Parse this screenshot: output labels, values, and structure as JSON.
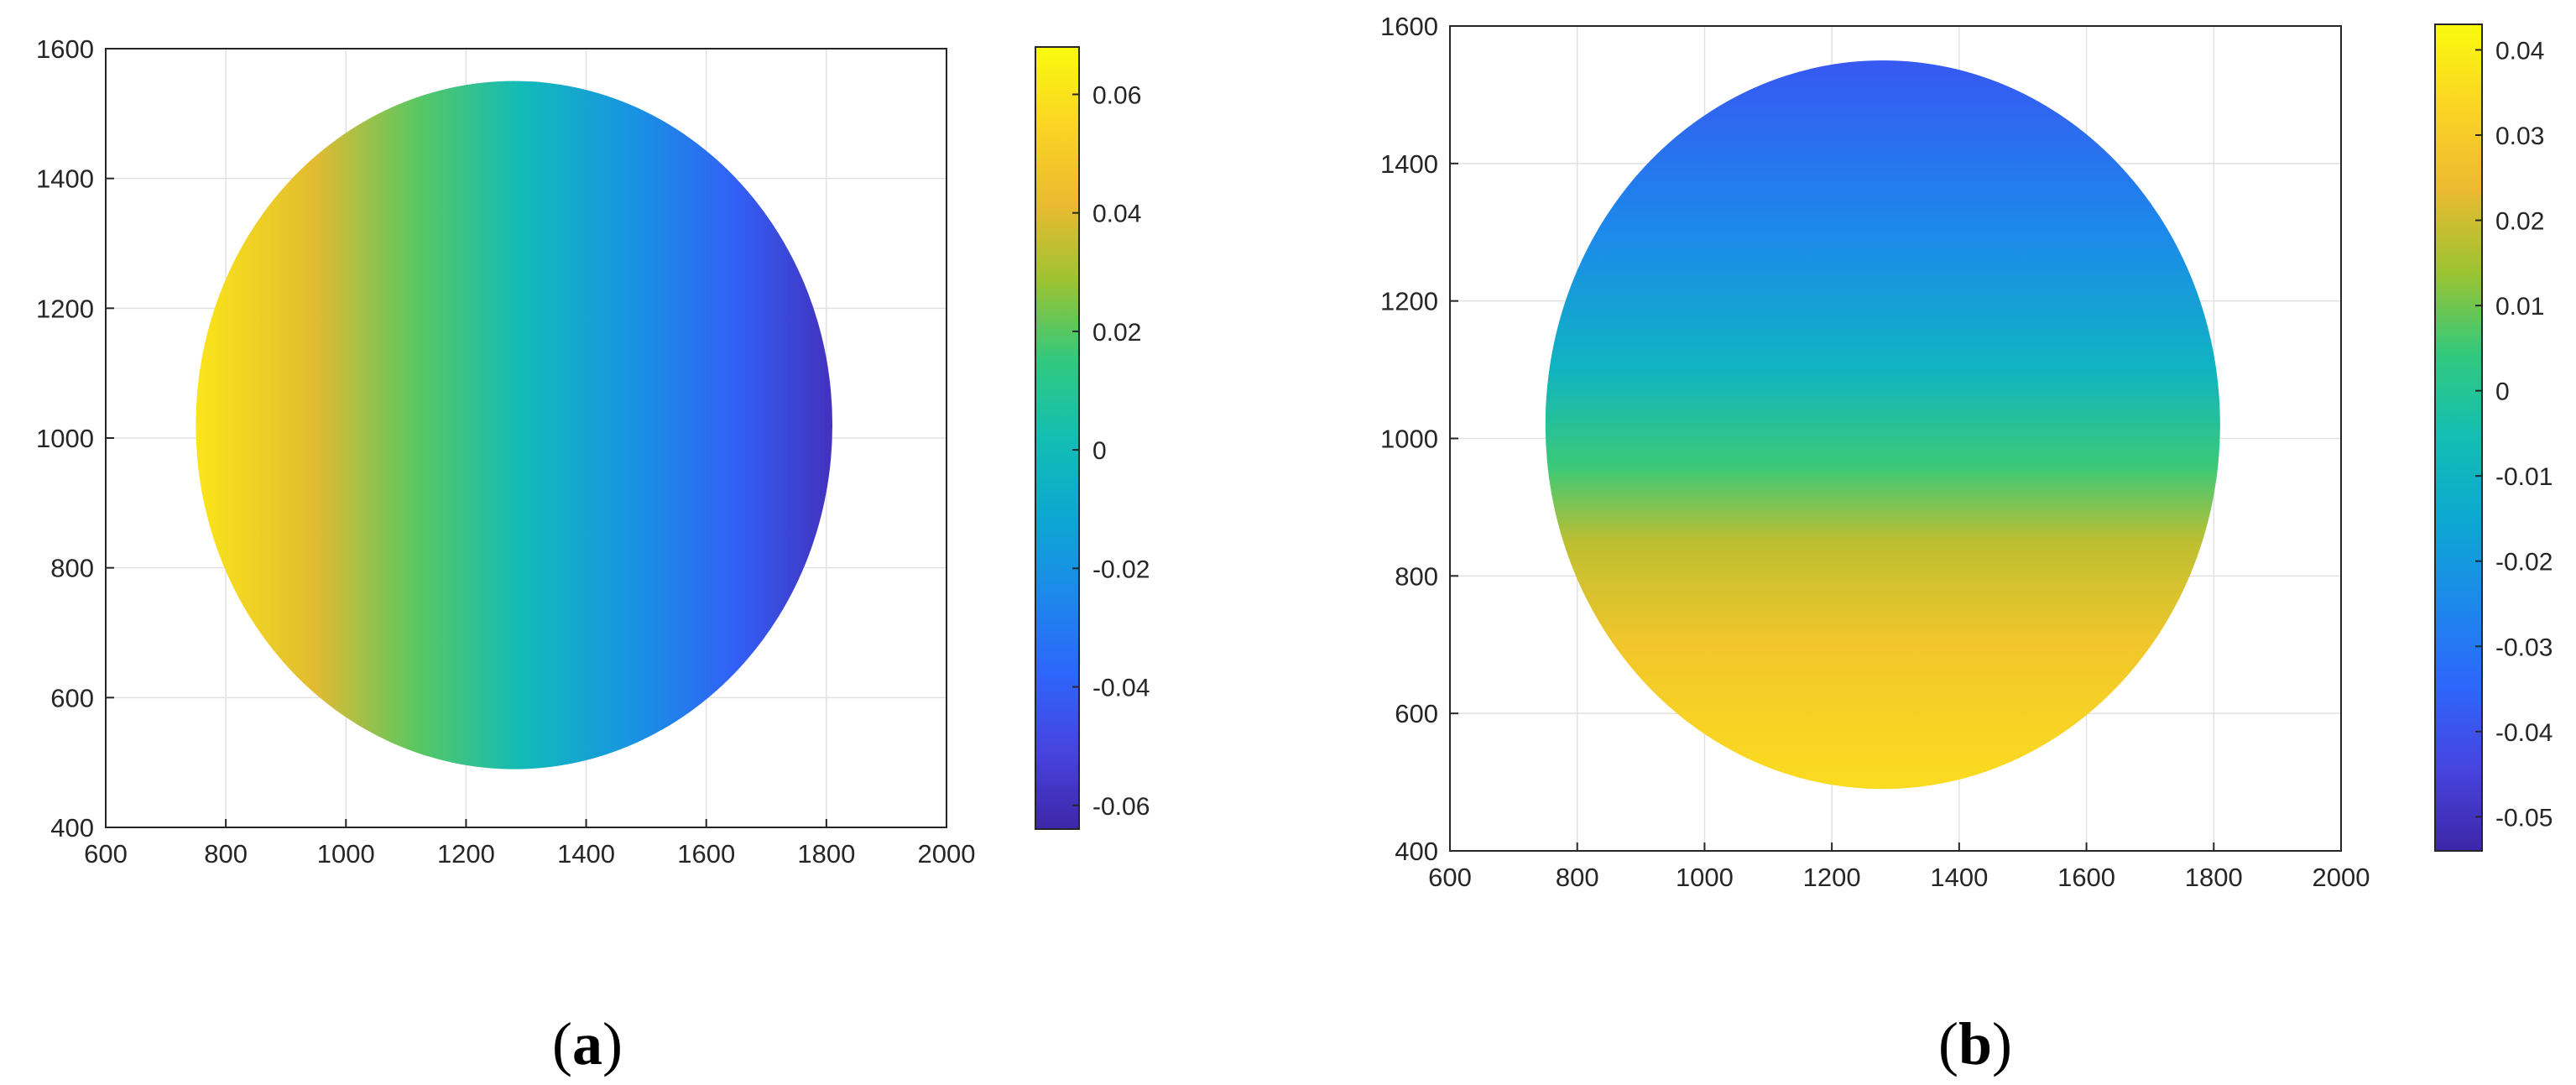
{
  "colors": {
    "parula": [
      "#3E26A8",
      "#4744E0",
      "#2D66FB",
      "#1C89EB",
      "#0CA8D1",
      "#13BEB3",
      "#31C97E",
      "#9CC331",
      "#EBBA31",
      "#FBD424",
      "#F9FB0E"
    ],
    "grid": "#E1E1E1",
    "axis": "#262626"
  },
  "chart_data": [
    {
      "type": "heatmap",
      "panel_label": "a",
      "xlim": [
        600,
        2000
      ],
      "ylim": [
        400,
        1600
      ],
      "x_ticks": [
        600,
        800,
        1000,
        1200,
        1400,
        1600,
        1800,
        2000
      ],
      "y_ticks": [
        400,
        600,
        800,
        1000,
        1200,
        1400,
        1600
      ],
      "grid": true,
      "region": {
        "shape": "ellipse",
        "center": [
          1280,
          1020
        ],
        "radius_x": 530,
        "radius_y": 530
      },
      "gradient_direction": "horizontal",
      "field_profile": [
        {
          "x": 760,
          "value": 0.06
        },
        {
          "x": 950,
          "value": 0.04
        },
        {
          "x": 1120,
          "value": 0.02
        },
        {
          "x": 1290,
          "value": 0.0
        },
        {
          "x": 1480,
          "value": -0.02
        },
        {
          "x": 1650,
          "value": -0.04
        },
        {
          "x": 1800,
          "value": -0.058
        }
      ],
      "colorbar": {
        "limits": [
          -0.064,
          0.068
        ],
        "ticks": [
          0.06,
          0.04,
          0.02,
          0,
          -0.02,
          -0.04,
          -0.06
        ],
        "tick_labels": [
          "0.06",
          "0.04",
          "0.02",
          "0",
          "-0.02",
          "-0.04",
          "-0.06"
        ]
      }
    },
    {
      "type": "heatmap",
      "panel_label": "b",
      "xlim": [
        600,
        2000
      ],
      "ylim": [
        400,
        1600
      ],
      "x_ticks": [
        600,
        800,
        1000,
        1200,
        1400,
        1600,
        1800,
        2000
      ],
      "y_ticks": [
        400,
        600,
        800,
        1000,
        1200,
        1400,
        1600
      ],
      "grid": true,
      "region": {
        "shape": "ellipse",
        "center": [
          1280,
          1020
        ],
        "radius_x": 530,
        "radius_y": 530
      },
      "gradient_direction": "vertical",
      "field_profile": [
        {
          "y": 500,
          "value": 0.035
        },
        {
          "y": 700,
          "value": 0.028
        },
        {
          "y": 850,
          "value": 0.018
        },
        {
          "y": 960,
          "value": 0.005
        },
        {
          "y": 1100,
          "value": -0.01
        },
        {
          "y": 1300,
          "value": -0.025
        },
        {
          "y": 1540,
          "value": -0.038
        }
      ],
      "colorbar": {
        "limits": [
          -0.054,
          0.043
        ],
        "ticks": [
          0.04,
          0.03,
          0.02,
          0.01,
          0,
          -0.01,
          -0.02,
          -0.03,
          -0.04,
          -0.05
        ],
        "tick_labels": [
          "0.04",
          "0.03",
          "0.02",
          "0.01",
          "0",
          "-0.01",
          "-0.02",
          "-0.03",
          "-0.04",
          "-0.05"
        ]
      }
    }
  ]
}
